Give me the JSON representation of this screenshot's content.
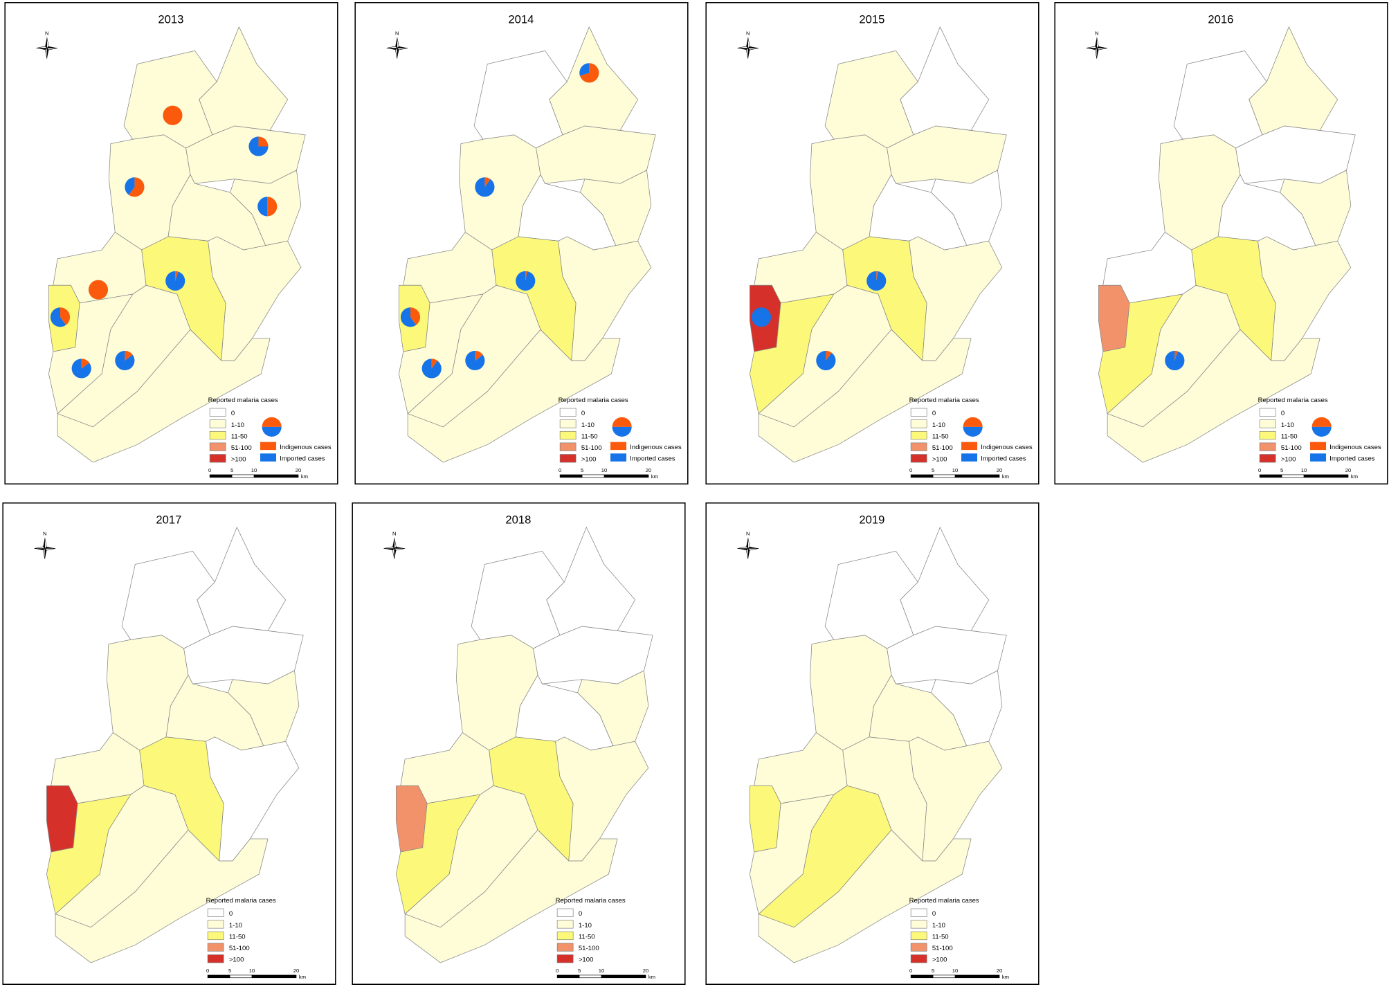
{
  "panels": [
    {
      "title": "2013",
      "pie_legend": true,
      "regions": [
        "1-10",
        "1-10",
        "1-10",
        "1-10",
        "1-10",
        "1-10",
        "11-50",
        "1-10",
        "11-50",
        "1-10",
        "1-10",
        "1-10",
        "1-10"
      ],
      "pies": [
        {
          "region": 0,
          "indigenous": 100,
          "imported": 0
        },
        {
          "region": 3,
          "indigenous": 25,
          "imported": 75
        },
        {
          "region": 2,
          "indigenous": 60,
          "imported": 40
        },
        {
          "region": 4,
          "indigenous": 50,
          "imported": 50
        },
        {
          "region": 7,
          "indigenous": 100,
          "imported": 0
        },
        {
          "region": 6,
          "indigenous": 5,
          "imported": 95
        },
        {
          "region": 8,
          "indigenous": 40,
          "imported": 60
        },
        {
          "region": 10,
          "indigenous": 15,
          "imported": 85
        },
        {
          "region": 11,
          "indigenous": 15,
          "imported": 85
        }
      ]
    },
    {
      "title": "2014",
      "pie_legend": true,
      "regions": [
        "0",
        "1-10",
        "1-10",
        "1-10",
        "1-10",
        "0",
        "11-50",
        "1-10",
        "11-50",
        "1-10",
        "1-10",
        "1-10",
        "1-10"
      ],
      "pies": [
        {
          "region": 1,
          "indigenous": 70,
          "imported": 30
        },
        {
          "region": 2,
          "indigenous": 10,
          "imported": 90
        },
        {
          "region": 6,
          "indigenous": 3,
          "imported": 97
        },
        {
          "region": 8,
          "indigenous": 40,
          "imported": 60
        },
        {
          "region": 10,
          "indigenous": 10,
          "imported": 90
        },
        {
          "region": 11,
          "indigenous": 15,
          "imported": 85
        }
      ]
    },
    {
      "title": "2015",
      "pie_legend": true,
      "regions": [
        "1-10",
        "0",
        "1-10",
        "1-10",
        "0",
        "0",
        "11-50",
        "1-10",
        ">100",
        "1-10",
        "11-50",
        "1-10",
        "1-10"
      ],
      "pies": [
        {
          "region": 6,
          "indigenous": 3,
          "imported": 97
        },
        {
          "region": 8,
          "indigenous": 0,
          "imported": 100
        },
        {
          "region": 11,
          "indigenous": 10,
          "imported": 90
        }
      ]
    },
    {
      "title": "2016",
      "pie_legend": true,
      "regions": [
        "0",
        "1-10",
        "1-10",
        "0",
        "1-10",
        "0",
        "11-50",
        "0",
        "51-100",
        "1-10",
        "11-50",
        "1-10",
        "1-10"
      ],
      "pies": [
        {
          "region": 11,
          "indigenous": 5,
          "imported": 95
        }
      ]
    },
    {
      "title": "2017",
      "pie_legend": false,
      "regions": [
        "0",
        "0",
        "1-10",
        "0",
        "1-10",
        "1-10",
        "11-50",
        "1-10",
        ">100",
        "0",
        "11-50",
        "1-10",
        "1-10"
      ],
      "pies": []
    },
    {
      "title": "2018",
      "pie_legend": false,
      "regions": [
        "0",
        "0",
        "1-10",
        "0",
        "1-10",
        "0",
        "11-50",
        "1-10",
        "51-100",
        "1-10",
        "11-50",
        "1-10",
        "1-10"
      ],
      "pies": []
    },
    {
      "title": "2019",
      "pie_legend": false,
      "regions": [
        "0",
        "0",
        "1-10",
        "0",
        "0",
        "1-10",
        "1-10",
        "1-10",
        "11-50",
        "1-10",
        "1-10",
        "11-50",
        "1-10"
      ],
      "pies": []
    }
  ],
  "legend": {
    "title": "Reported malaria cases",
    "classes": [
      {
        "label": "0",
        "color": "#ffffff"
      },
      {
        "label": "1-10",
        "color": "#fefdd8"
      },
      {
        "label": "11-50",
        "color": "#fcf97a"
      },
      {
        "label": "51-100",
        "color": "#f2926a"
      },
      {
        "label": ">100",
        "color": "#d5312a"
      }
    ],
    "pie_entries": [
      {
        "label": "Indigenous cases",
        "color": "#fb5a0c"
      },
      {
        "label": "Imported cases",
        "color": "#1673e8"
      }
    ]
  },
  "scale": {
    "ticks": [
      0,
      5,
      10,
      20
    ],
    "unit": "km"
  },
  "north": "N"
}
